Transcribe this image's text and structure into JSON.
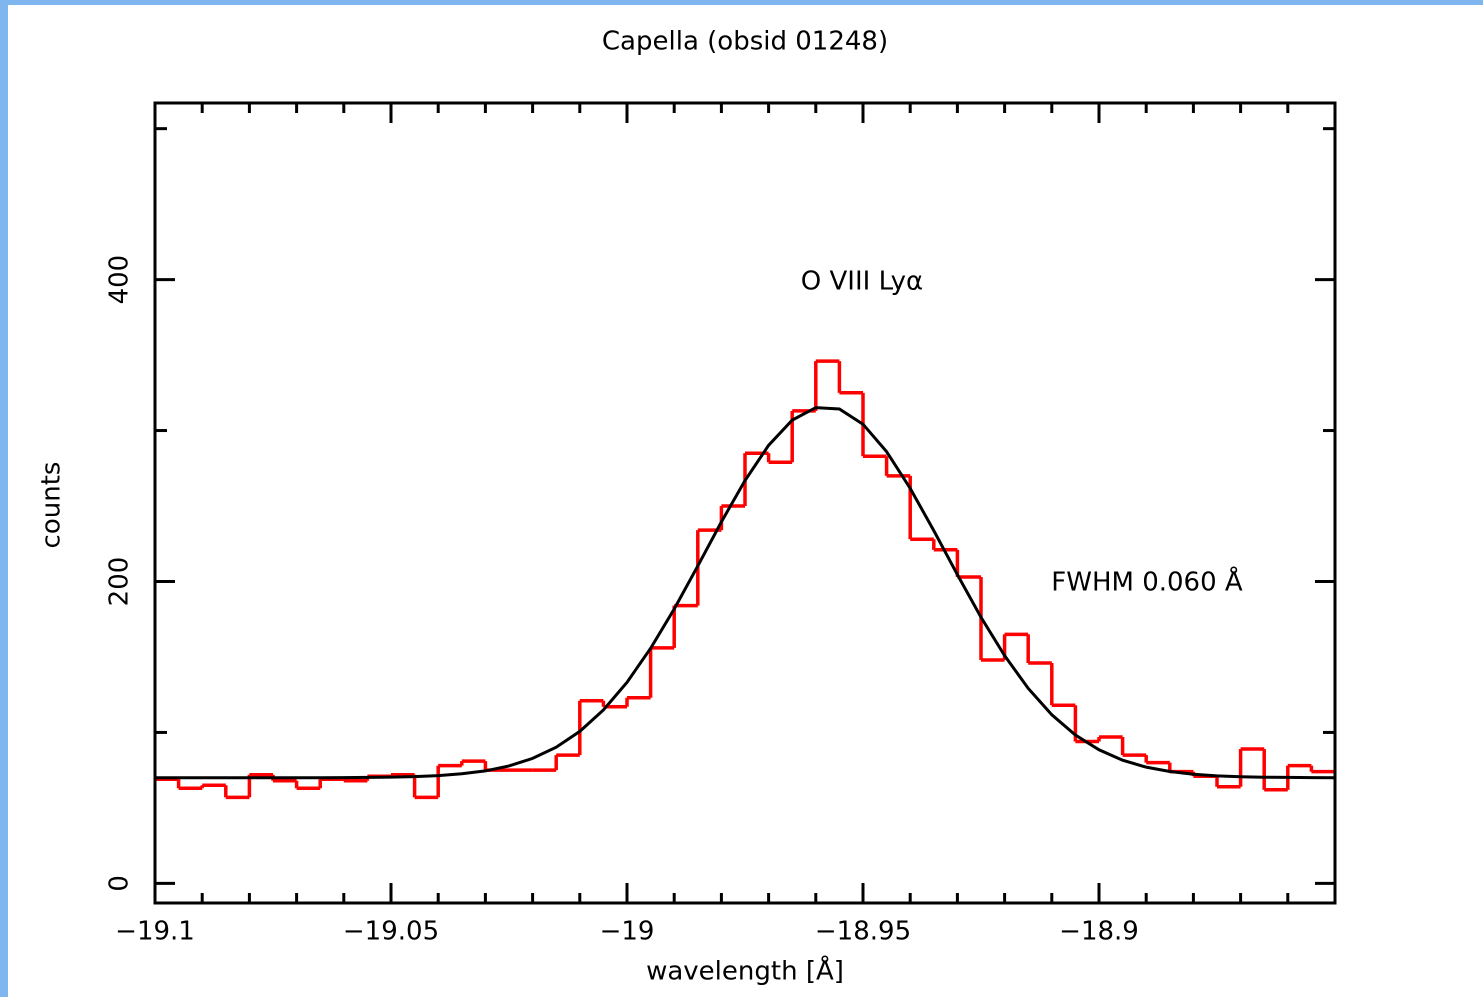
{
  "chart_data": {
    "type": "step-histogram",
    "title": "Capella (obsid 01248)",
    "xlabel": "wavelength [Å]",
    "ylabel": "counts",
    "annotations": [
      "O VIII Lyα",
      "FWHM 0.060 Å"
    ],
    "xlim": [
      -19.1,
      -18.85
    ],
    "ylim": [
      -13,
      517
    ],
    "xticks": [
      {
        "value": -19.1,
        "label": "−19.1"
      },
      {
        "value": -19.05,
        "label": "−19.05"
      },
      {
        "value": -19,
        "label": "−19"
      },
      {
        "value": -18.95,
        "label": "−18.95"
      },
      {
        "value": -18.9,
        "label": "−18.9"
      }
    ],
    "xminor_ticks": [
      -19.09,
      -19.08,
      -19.07,
      -19.06,
      -19.04,
      -19.03,
      -19.02,
      -19.01,
      -18.99,
      -18.98,
      -18.97,
      -18.96,
      -18.94,
      -18.93,
      -18.92,
      -18.91,
      -18.89,
      -18.88,
      -18.87,
      -18.86
    ],
    "yticks": [
      0,
      200,
      400
    ],
    "yminor_ticks": [
      100,
      300,
      500
    ],
    "bins": [
      -19.1,
      -19.095,
      -19.09,
      -19.085,
      -19.08,
      -19.075,
      -19.07,
      -19.065,
      -19.06,
      -19.055,
      -19.05,
      -19.045,
      -19.04,
      -19.035,
      -19.03,
      -19.025,
      -19.02,
      -19.015,
      -19.01,
      -19.005,
      -19,
      -18.995,
      -18.99,
      -18.985,
      -18.98,
      -18.975,
      -18.97,
      -18.965,
      -18.96,
      -18.955,
      -18.95,
      -18.945,
      -18.94,
      -18.935,
      -18.93,
      -18.925,
      -18.92,
      -18.915,
      -18.91,
      -18.905,
      -18.9,
      -18.895,
      -18.89,
      -18.885,
      -18.88,
      -18.875,
      -18.87,
      -18.865,
      -18.86,
      -18.855,
      -18.85
    ],
    "series": [
      {
        "name": "data",
        "color": "#ff0000",
        "values": [
          69,
          63,
          65,
          57,
          72,
          68,
          63,
          69,
          68,
          71,
          72,
          57,
          78,
          81,
          75,
          75,
          75,
          85,
          121,
          117,
          123,
          156,
          184,
          234,
          250,
          285,
          279,
          313,
          346,
          325,
          283,
          270,
          228,
          221,
          203,
          148,
          165,
          146,
          118,
          94,
          97,
          85,
          80,
          74,
          71,
          64,
          89,
          62,
          78,
          74
        ]
      },
      {
        "name": "fit",
        "color": "#000000",
        "x": [
          -19.1,
          -19.095,
          -19.09,
          -19.085,
          -19.08,
          -19.075,
          -19.07,
          -19.065,
          -19.06,
          -19.055,
          -19.05,
          -19.045,
          -19.04,
          -19.035,
          -19.03,
          -19.025,
          -19.02,
          -19.015,
          -19.01,
          -19.005,
          -19,
          -18.995,
          -18.99,
          -18.985,
          -18.98,
          -18.975,
          -18.97,
          -18.965,
          -18.96,
          -18.955,
          -18.95,
          -18.945,
          -18.94,
          -18.935,
          -18.93,
          -18.925,
          -18.92,
          -18.915,
          -18.91,
          -18.905,
          -18.9,
          -18.895,
          -18.89,
          -18.885,
          -18.88,
          -18.875,
          -18.87,
          -18.865,
          -18.86,
          -18.855,
          -18.85
        ],
        "values": [
          70,
          70,
          70,
          70,
          70,
          70,
          70,
          70,
          70.1,
          70.2,
          70.4,
          70.7,
          71.4,
          72.6,
          74.5,
          77.8,
          82.8,
          90.2,
          100.7,
          114.9,
          133.2,
          155.7,
          181.8,
          210.3,
          239.5,
          266.9,
          290.2,
          306.9,
          315.2,
          314.3,
          304.2,
          286,
          261.7,
          233.7,
          204.5,
          176.3,
          150.9,
          129.2,
          111.7,
          98.3,
          88.5,
          81.6,
          77,
          74.1,
          72.3,
          71.2,
          70.6,
          70.3,
          70.2,
          70.1,
          70
        ]
      }
    ]
  }
}
